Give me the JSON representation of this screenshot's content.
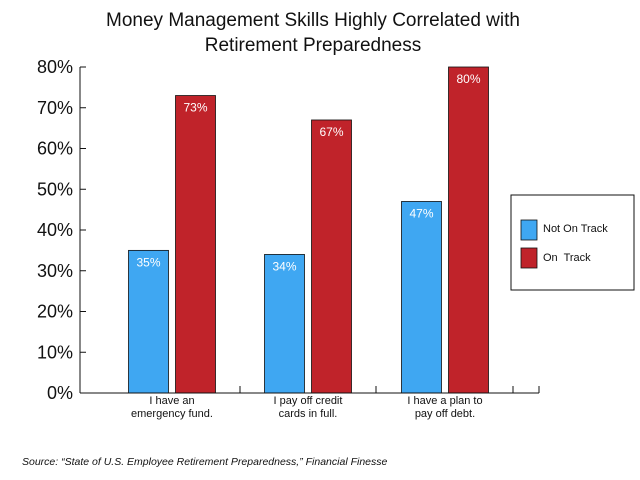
{
  "chart_data": {
    "type": "bar",
    "title_lines": [
      "Money Management Skills Highly Correlated with",
      "Retirement Preparedness"
    ],
    "categories": [
      [
        "I have an",
        "emergency fund."
      ],
      [
        "I pay off credit",
        "cards in full."
      ],
      [
        "I have a plan to",
        "pay off debt."
      ]
    ],
    "series": [
      {
        "name": "Not On Track",
        "values": [
          35,
          34,
          47
        ],
        "labels": [
          "35%",
          "34%",
          "47%"
        ],
        "color": "#3fa7f2"
      },
      {
        "name": "On  Track",
        "values": [
          73,
          67,
          80
        ],
        "labels": [
          "73%",
          "67%",
          "80%"
        ],
        "color": "#c0232a"
      }
    ],
    "ylim": [
      0,
      80
    ],
    "yticks": [
      "0%",
      "10%",
      "20%",
      "30%",
      "40%",
      "50%",
      "60%",
      "70%",
      "80%"
    ],
    "legend_position": "right",
    "grid": false
  },
  "source": "Source: “State of U.S. Employee Retirement Preparedness,”  Financial Finesse"
}
